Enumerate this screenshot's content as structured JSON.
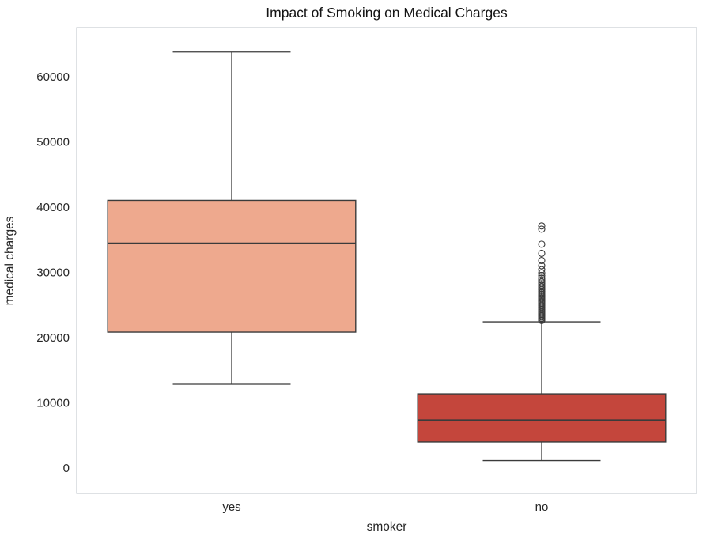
{
  "figure": {
    "background": "#ffffff"
  },
  "chart_data": {
    "type": "boxplot",
    "title": "Impact of Smoking on Medical Charges",
    "xlabel": "smoker",
    "ylabel": "medical charges",
    "categories": [
      "yes",
      "no"
    ],
    "ylim": [
      -3900,
      67500
    ],
    "yticks": [
      0,
      10000,
      20000,
      30000,
      40000,
      50000,
      60000
    ],
    "grid": false,
    "legend": null,
    "edge_color": "#3B3B3B",
    "spine_color": "#C9CDD3",
    "boxes": [
      {
        "category": "yes",
        "whisker_low": 12829,
        "q1": 20826,
        "median": 34456,
        "q3": 41019,
        "whisker_high": 63770,
        "fill_color": "#EEA98E",
        "outliers": []
      },
      {
        "category": "no",
        "whisker_low": 1122,
        "q1": 3986,
        "median": 7345,
        "q3": 11363,
        "whisker_high": 22395,
        "fill_color": "#C4463C",
        "outliers": [
          37100,
          36600,
          34300,
          32900,
          31800,
          31000,
          30400,
          29900,
          29500,
          29100,
          28800,
          28500,
          28250,
          28000,
          27760,
          27520,
          27300,
          27080,
          26860,
          26650,
          26440,
          26230,
          26030,
          25830,
          25630,
          25430,
          25240,
          25050,
          24860,
          24670,
          24480,
          24290,
          24100,
          23910,
          23720,
          23530,
          23340,
          23150,
          22960,
          22770,
          22600
        ]
      }
    ]
  }
}
